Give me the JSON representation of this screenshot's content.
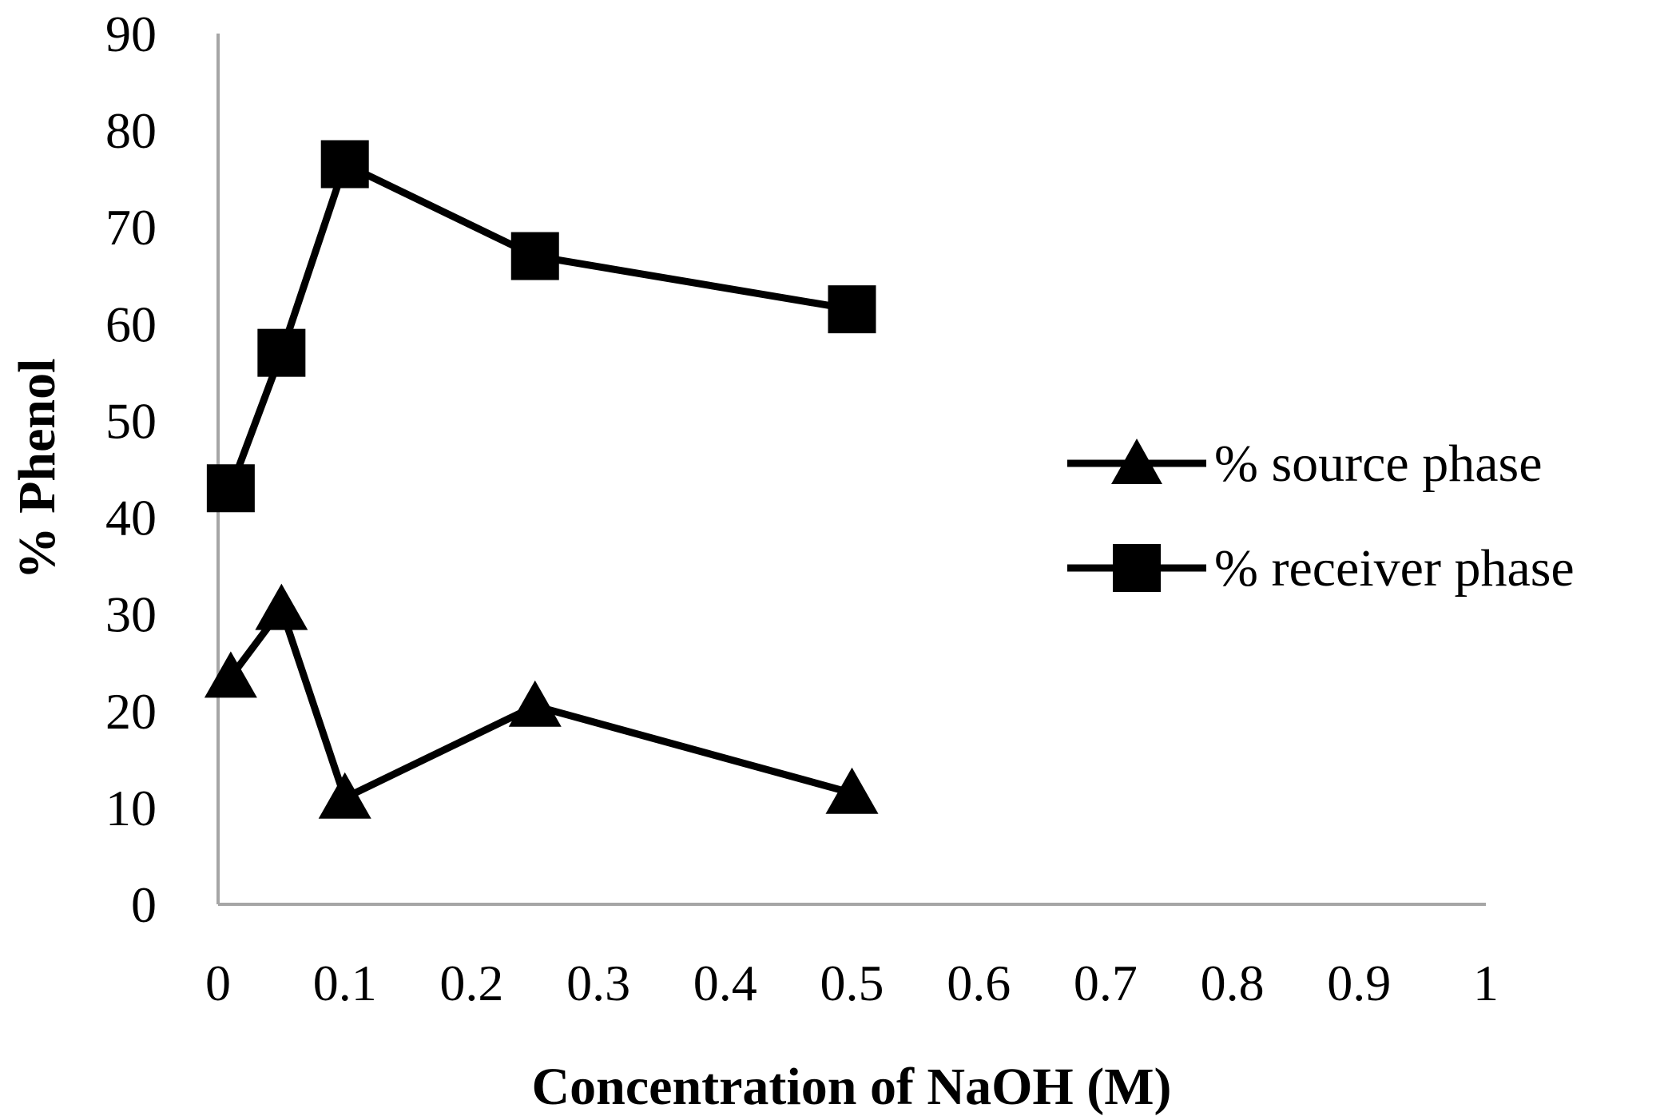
{
  "chart_data": {
    "type": "line",
    "title": "",
    "xlabel": "Concentration of NaOH (M)",
    "ylabel": "% Phenol",
    "xlim": [
      0,
      1
    ],
    "ylim": [
      0,
      90
    ],
    "x_ticks": [
      "0",
      "0.1",
      "0.2",
      "0.3",
      "0.4",
      "0.5",
      "0.6",
      "0.7",
      "0.8",
      "0.9",
      "1"
    ],
    "y_ticks": [
      "0",
      "10",
      "20",
      "30",
      "40",
      "50",
      "60",
      "70",
      "80",
      "90"
    ],
    "grid": false,
    "legend_position": "right",
    "series": [
      {
        "name": "% source phase",
        "marker": "triangle",
        "color": "#000000",
        "x": [
          0.01,
          0.05,
          0.1,
          0.25,
          0.5
        ],
        "y": [
          23.5,
          30.5,
          11.0,
          20.5,
          11.5
        ]
      },
      {
        "name": "% receiver phase",
        "marker": "square",
        "color": "#000000",
        "x": [
          0.01,
          0.05,
          0.1,
          0.25,
          0.5
        ],
        "y": [
          43.0,
          57.0,
          76.5,
          67.0,
          61.5
        ]
      }
    ]
  }
}
